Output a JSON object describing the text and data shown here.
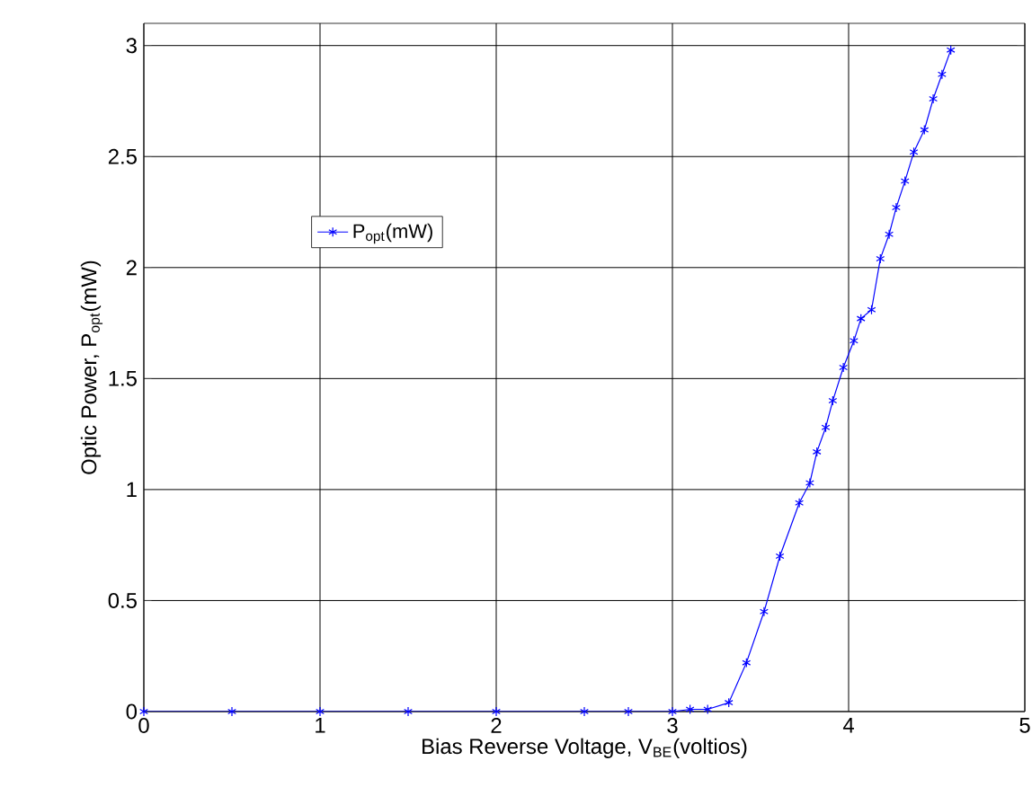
{
  "chart_data": {
    "type": "line",
    "xlabel": "Bias Reverse Voltage, V$_{BE}$(voltios)",
    "ylabel": "Optic Power, P$_{opt}$(mW)",
    "xlim": [
      0,
      5
    ],
    "ylim": [
      0,
      3.1
    ],
    "xticks": [
      0,
      1,
      2,
      3,
      4,
      5
    ],
    "yticks": [
      0,
      0.5,
      1,
      1.5,
      2,
      2.5,
      3
    ],
    "grid": true,
    "legend": "top left",
    "marker": "cross",
    "line_style": "solid",
    "series": [
      {
        "name": "P$_{opt}$(mW)",
        "color": "#0000ff",
        "x": [
          0,
          0.5,
          1,
          1.5,
          2,
          2.5,
          2.75,
          3,
          3.1,
          3.2,
          3.32,
          3.42,
          3.52,
          3.61,
          3.72,
          3.78,
          3.82,
          3.87,
          3.91,
          3.97,
          4.03,
          4.07,
          4.13,
          4.18,
          4.23,
          4.27,
          4.32,
          4.37,
          4.43,
          4.48,
          4.53,
          4.58
        ],
        "values": [
          0,
          0,
          0,
          0,
          0,
          0,
          0,
          0,
          0.01,
          0.01,
          0.04,
          0.22,
          0.45,
          0.7,
          0.94,
          1.03,
          1.17,
          1.28,
          1.4,
          1.55,
          1.67,
          1.77,
          1.81,
          2.04,
          2.15,
          2.27,
          2.39,
          2.52,
          2.62,
          2.76,
          2.87,
          2.98
        ]
      }
    ]
  }
}
